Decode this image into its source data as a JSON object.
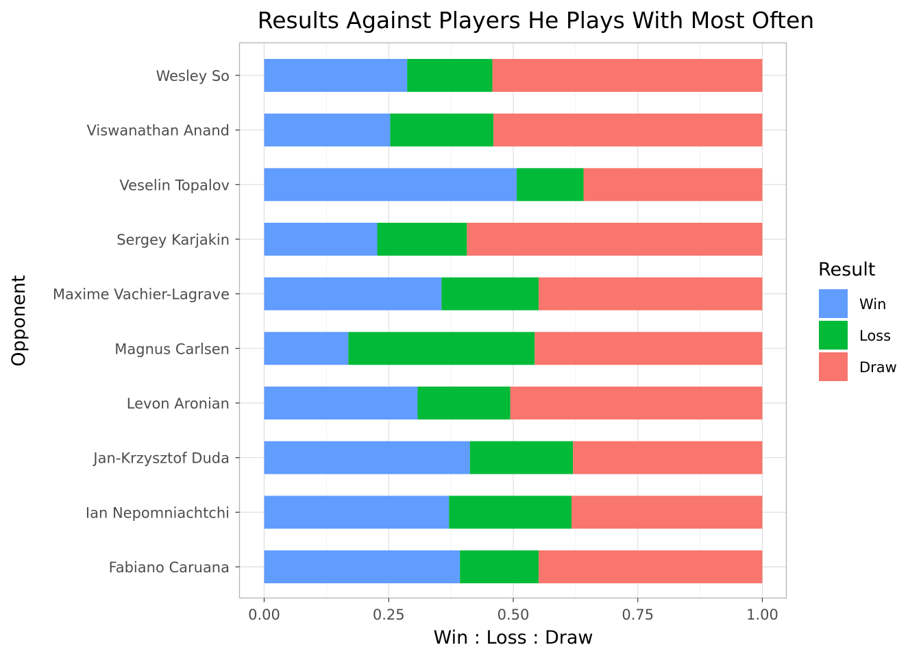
{
  "chart_data": {
    "type": "bar",
    "orientation": "horizontal",
    "stacked": true,
    "title": "Results Against Players He Plays With Most Often",
    "xlabel": "Win : Loss : Draw",
    "ylabel": "Opponent",
    "xlim": [
      0,
      1
    ],
    "xticks": [
      0,
      0.25,
      0.5,
      0.75,
      1
    ],
    "xtick_labels": [
      "0.00",
      "0.25",
      "0.50",
      "0.75",
      "1.00"
    ],
    "grid": true,
    "legend": {
      "title": "Result",
      "position": "right"
    },
    "categories": [
      "Wesley So",
      "Viswanathan Anand",
      "Veselin Topalov",
      "Sergey Karjakin",
      "Maxime Vachier-Lagrave",
      "Magnus Carlsen",
      "Levon Aronian",
      "Jan-Krzysztof Duda",
      "Ian Nepomniachtchi",
      "Fabiano Caruana"
    ],
    "series": [
      {
        "name": "Win",
        "color": "#619CFF",
        "values": [
          0.287,
          0.253,
          0.507,
          0.227,
          0.356,
          0.169,
          0.308,
          0.413,
          0.371,
          0.393
        ]
      },
      {
        "name": "Loss",
        "color": "#00BA38",
        "values": [
          0.171,
          0.207,
          0.134,
          0.18,
          0.195,
          0.374,
          0.186,
          0.207,
          0.246,
          0.158
        ]
      },
      {
        "name": "Draw",
        "color": "#F8766D",
        "values": [
          0.542,
          0.54,
          0.359,
          0.593,
          0.449,
          0.457,
          0.506,
          0.38,
          0.383,
          0.449
        ]
      }
    ]
  }
}
